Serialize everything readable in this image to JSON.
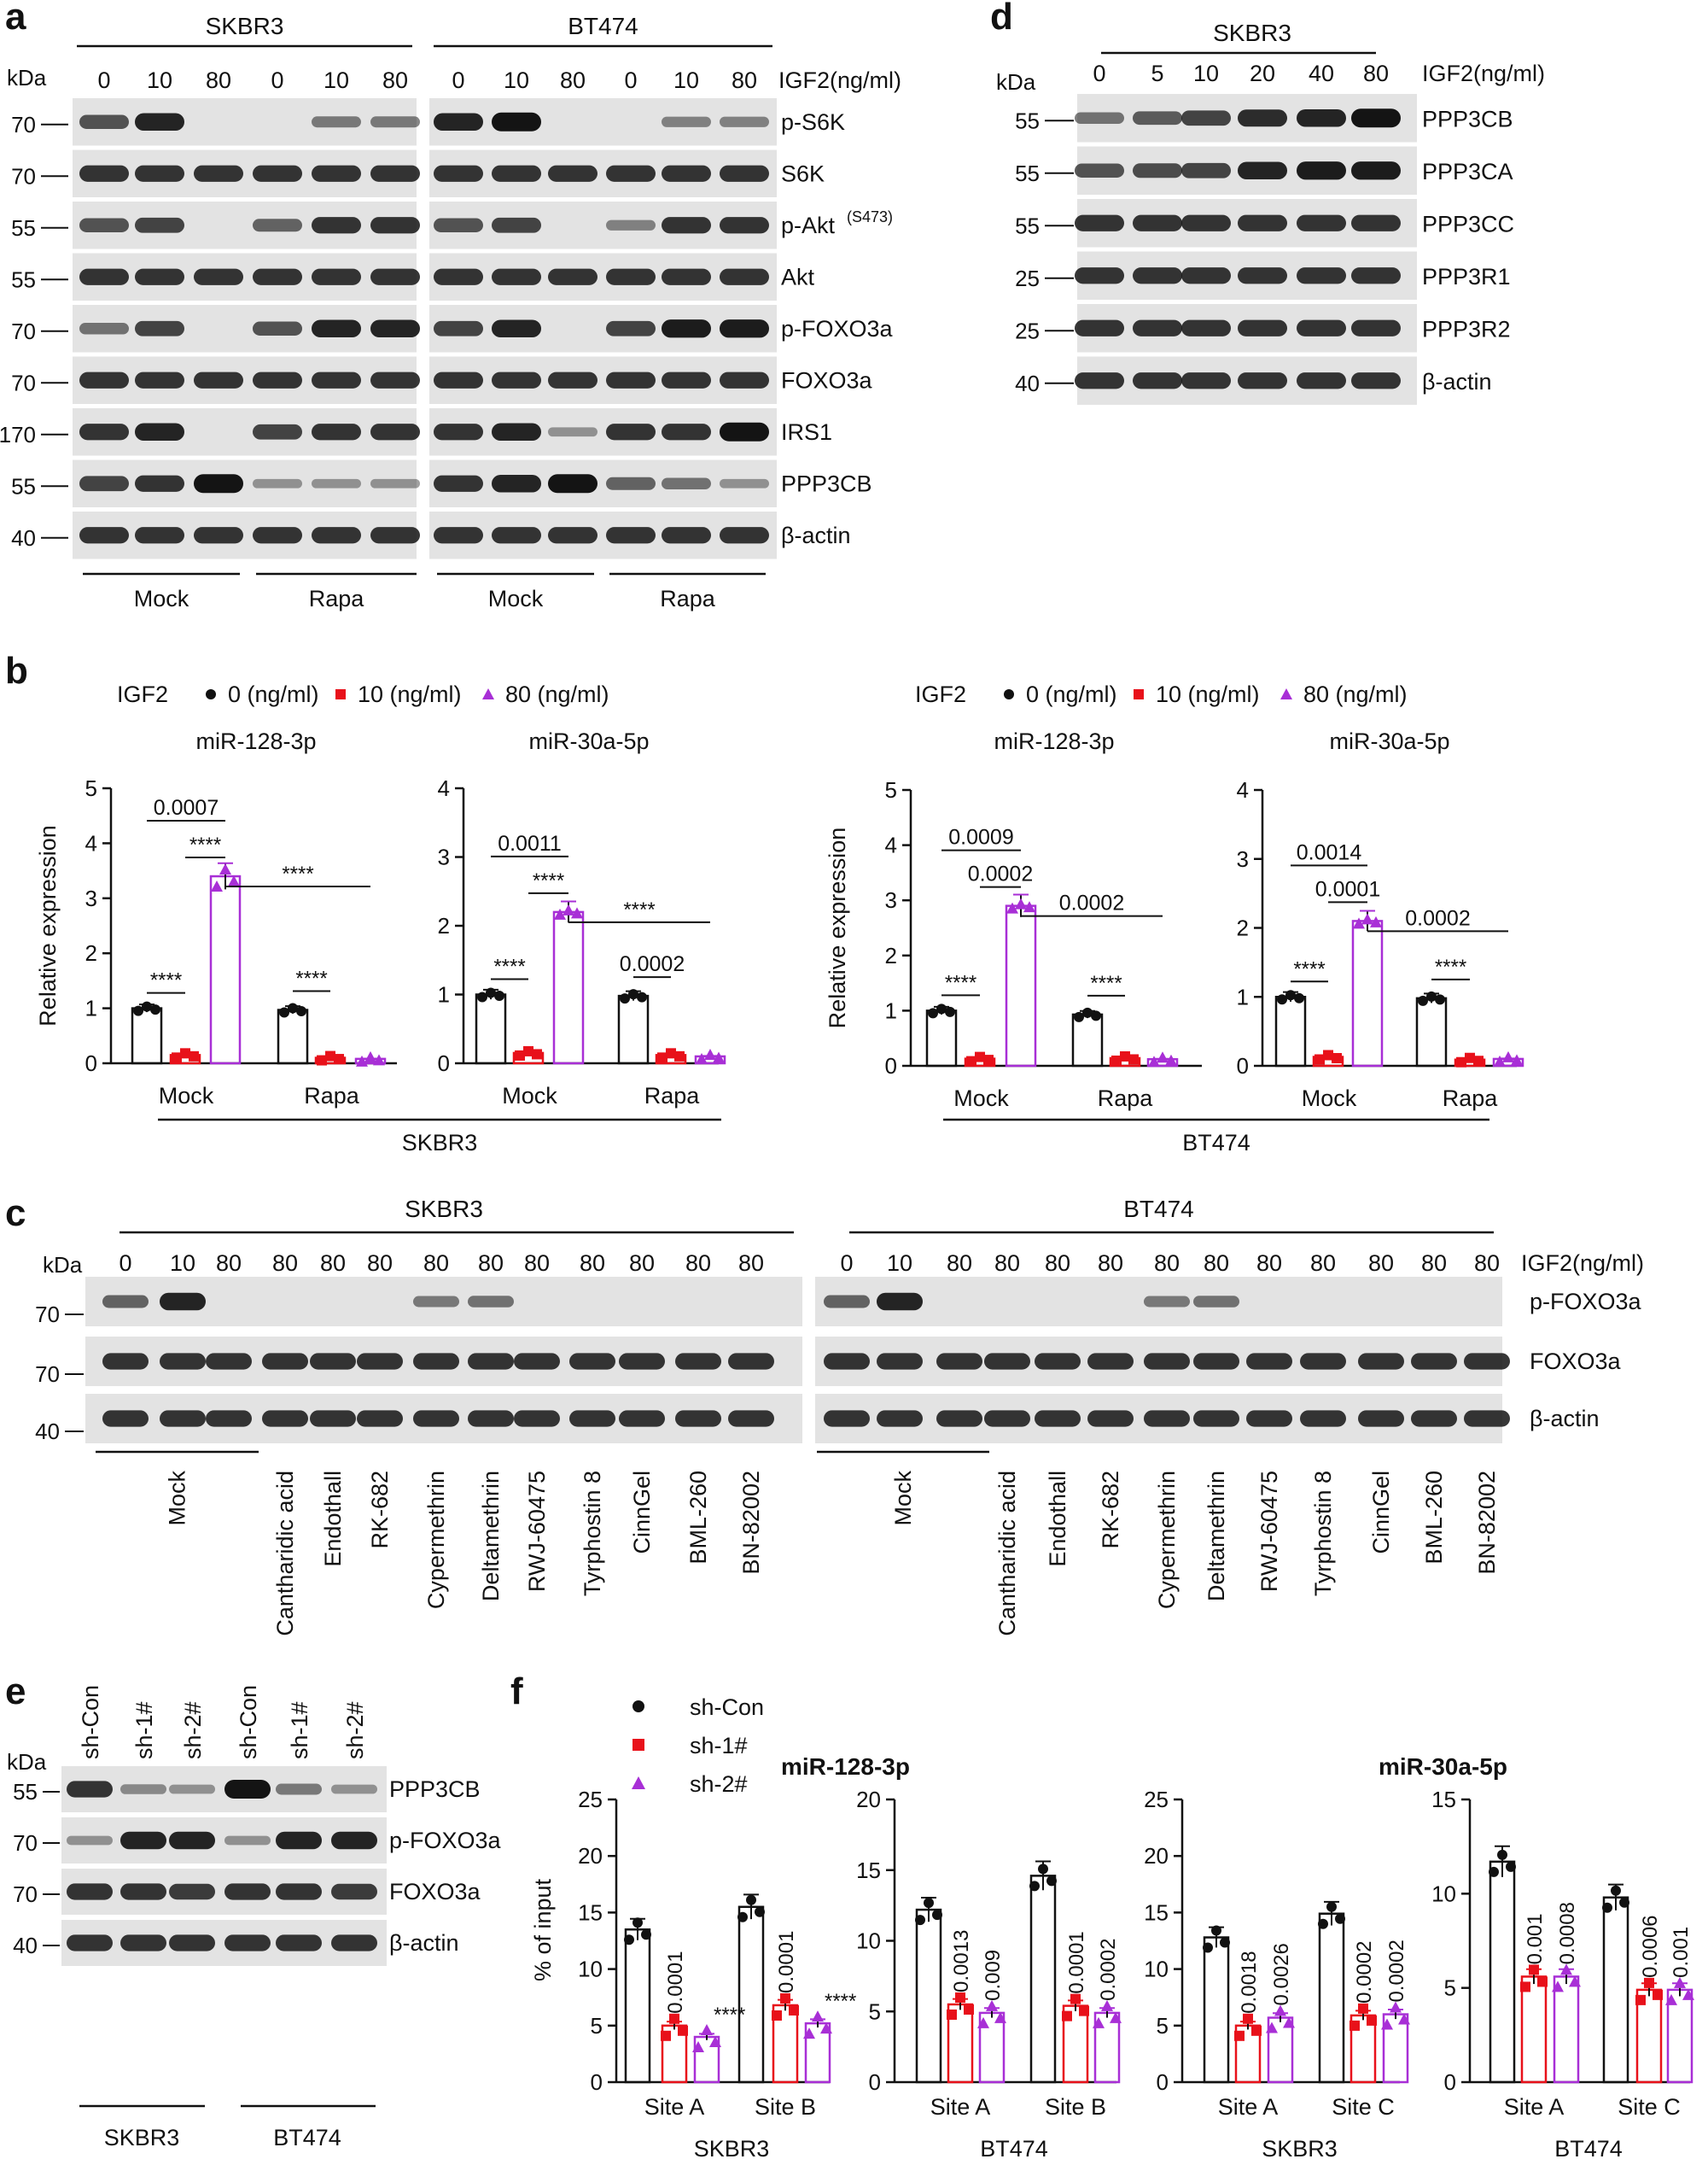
{
  "panels": {
    "a": {
      "letter": "a",
      "kda": "kDa",
      "groups": [
        {
          "cell": "SKBR3",
          "lanes": [
            "0",
            "10",
            "80",
            "0",
            "10",
            "80"
          ],
          "treatments": [
            "Mock",
            "Rapa"
          ]
        },
        {
          "cell": "BT474",
          "lanes": [
            "0",
            "10",
            "80",
            "0",
            "10",
            "80"
          ],
          "treatments": [
            "Mock",
            "Rapa"
          ]
        }
      ],
      "igf2_label": "IGF2(ng/ml)",
      "rows": [
        {
          "label": "p-S6K",
          "mw": "70",
          "levels": [
            0.6,
            0.9,
            0.0,
            0.0,
            0.35,
            0.35
          ],
          "levels2": [
            0.9,
            1.0,
            0.0,
            0.0,
            0.3,
            0.3
          ]
        },
        {
          "label": "S6K",
          "mw": "70",
          "levels": [
            0.8,
            0.8,
            0.8,
            0.8,
            0.8,
            0.8
          ],
          "levels2": [
            0.8,
            0.8,
            0.8,
            0.8,
            0.8,
            0.8
          ]
        },
        {
          "label": "p-Akt",
          "sup": "(S473)",
          "mw": "55",
          "levels": [
            0.6,
            0.7,
            0.0,
            0.5,
            0.8,
            0.8
          ],
          "levels2": [
            0.6,
            0.7,
            0.0,
            0.3,
            0.8,
            0.8
          ]
        },
        {
          "label": "Akt",
          "mw": "55",
          "levels": [
            0.8,
            0.8,
            0.8,
            0.8,
            0.8,
            0.8
          ],
          "levels2": [
            0.8,
            0.8,
            0.8,
            0.8,
            0.8,
            0.8
          ]
        },
        {
          "label": "p-FOXO3a",
          "mw": "70",
          "levels": [
            0.4,
            0.7,
            0.0,
            0.6,
            0.9,
            0.9
          ],
          "levels2": [
            0.7,
            0.9,
            0.0,
            0.7,
            0.95,
            0.95
          ]
        },
        {
          "label": "FOXO3a",
          "mw": "70",
          "levels": [
            0.8,
            0.8,
            0.8,
            0.8,
            0.8,
            0.8
          ],
          "levels2": [
            0.8,
            0.8,
            0.8,
            0.8,
            0.8,
            0.8
          ]
        },
        {
          "label": "IRS1",
          "mw": "170",
          "levels": [
            0.8,
            0.9,
            0.0,
            0.7,
            0.8,
            0.8
          ],
          "levels2": [
            0.8,
            0.9,
            0.2,
            0.8,
            0.8,
            1.0
          ]
        },
        {
          "label": "PPP3CB",
          "mw": "55",
          "levels": [
            0.7,
            0.8,
            1.0,
            0.2,
            0.2,
            0.2
          ],
          "levels2": [
            0.8,
            0.9,
            1.0,
            0.5,
            0.4,
            0.2
          ]
        },
        {
          "label": "β-actin",
          "mw": "40",
          "levels": [
            0.8,
            0.8,
            0.8,
            0.8,
            0.8,
            0.8
          ],
          "levels2": [
            0.8,
            0.8,
            0.8,
            0.8,
            0.8,
            0.8
          ]
        }
      ]
    },
    "b": {
      "letter": "b",
      "legend_title": "IGF2",
      "legend_items": [
        "0 (ng/ml)",
        "10 (ng/ml)",
        "80 (ng/ml)"
      ],
      "ylabel": "Relative expression",
      "sig": "****",
      "charts": [
        {
          "title": "miR-128-3p",
          "ymax": 5,
          "ticks": [
            "0",
            "1",
            "2",
            "3",
            "4",
            "5"
          ],
          "values": [
            1.0,
            0.15,
            3.4,
            0.97,
            0.1,
            0.08
          ],
          "annotations": [
            "0.0007",
            "****",
            "****",
            "****",
            "****"
          ]
        },
        {
          "title": "miR-30a-5p",
          "ymax": 4,
          "ticks": [
            "0",
            "1",
            "2",
            "3",
            "4"
          ],
          "values": [
            1.0,
            0.15,
            2.2,
            0.98,
            0.12,
            0.1
          ],
          "annotations": [
            "0.0011",
            "****",
            "****",
            "****",
            "0.0002"
          ]
        },
        {
          "title": "miR-128-3p",
          "ymax": 5,
          "ticks": [
            "0",
            "1",
            "2",
            "3",
            "4",
            "5"
          ],
          "values": [
            1.0,
            0.13,
            2.9,
            0.93,
            0.14,
            0.12
          ],
          "annotations": [
            "0.0009",
            "0.0002",
            "0.0002",
            "****",
            "****"
          ]
        },
        {
          "title": "miR-30a-5p",
          "ymax": 4,
          "ticks": [
            "0",
            "1",
            "2",
            "3",
            "4"
          ],
          "values": [
            1.0,
            0.13,
            2.1,
            0.98,
            0.09,
            0.1
          ],
          "annotations": [
            "0.0014",
            "0.0001",
            "0.0002",
            "****",
            "****"
          ]
        }
      ],
      "groups": [
        "Mock",
        "Rapa"
      ],
      "cells": [
        "SKBR3",
        "BT474"
      ]
    },
    "c": {
      "letter": "c",
      "kda": "kDa",
      "cells": [
        "SKBR3",
        "BT474"
      ],
      "lanes": [
        "0",
        "10",
        "80",
        "80",
        "80",
        "80",
        "80",
        "80",
        "80",
        "80",
        "80",
        "80",
        "80"
      ],
      "igf2_label": "IGF2(ng/ml)",
      "rows": [
        {
          "label": "p-FOXO3a",
          "mw": "70"
        },
        {
          "label": "FOXO3a",
          "mw": "70"
        },
        {
          "label": "β-actin",
          "mw": "40"
        }
      ],
      "pfoxo_levels": [
        0.5,
        0.9,
        0,
        0,
        0,
        0,
        0.35,
        0.4,
        0,
        0,
        0,
        0,
        0
      ],
      "treatments": [
        "Mock",
        "Cantharidic acid",
        "Endothall",
        "RK-682",
        "Cypermethrin",
        "Deltamethrin",
        "RWJ-60475",
        "Tyrphostin 8",
        "CinnGel",
        "BML-260",
        "BN-82002"
      ]
    },
    "d": {
      "letter": "d",
      "kda": "kDa",
      "cell": "SKBR3",
      "lanes": [
        "0",
        "5",
        "10",
        "20",
        "40",
        "80"
      ],
      "igf2_label": "IGF2(ng/ml)",
      "rows": [
        {
          "label": "PPP3CB",
          "mw": "55",
          "levels": [
            0.4,
            0.55,
            0.7,
            0.85,
            0.9,
            1.0
          ]
        },
        {
          "label": "PPP3CA",
          "mw": "55",
          "levels": [
            0.6,
            0.65,
            0.7,
            0.9,
            0.95,
            0.95
          ]
        },
        {
          "label": "PPP3CC",
          "mw": "55",
          "levels": [
            0.8,
            0.8,
            0.8,
            0.8,
            0.8,
            0.8
          ]
        },
        {
          "label": "PPP3R1",
          "mw": "25",
          "levels": [
            0.8,
            0.8,
            0.8,
            0.8,
            0.8,
            0.8
          ]
        },
        {
          "label": "PPP3R2",
          "mw": "25",
          "levels": [
            0.8,
            0.8,
            0.8,
            0.8,
            0.8,
            0.8
          ]
        },
        {
          "label": "β-actin",
          "mw": "40",
          "levels": [
            0.8,
            0.8,
            0.8,
            0.8,
            0.8,
            0.8
          ]
        }
      ]
    },
    "e": {
      "letter": "e",
      "kda": "kDa",
      "lanes": [
        "sh-Con",
        "sh-1#",
        "sh-2#",
        "sh-Con",
        "sh-1#",
        "sh-2#"
      ],
      "cells": [
        "SKBR3",
        "BT474"
      ],
      "rows": [
        {
          "label": "PPP3CB",
          "mw": "55",
          "levels": [
            0.8,
            0.25,
            0.2,
            1.0,
            0.35,
            0.2
          ]
        },
        {
          "label": "p-FOXO3a",
          "mw": "70",
          "levels": [
            0.2,
            0.9,
            0.9,
            0.2,
            0.9,
            0.9
          ]
        },
        {
          "label": "FOXO3a",
          "mw": "70",
          "levels": [
            0.8,
            0.8,
            0.75,
            0.8,
            0.8,
            0.75
          ]
        },
        {
          "label": "β-actin",
          "mw": "40",
          "levels": [
            0.8,
            0.8,
            0.8,
            0.8,
            0.8,
            0.8
          ]
        }
      ]
    },
    "f": {
      "letter": "f",
      "legend_items": [
        "sh-Con",
        "sh-1#",
        "sh-2#"
      ],
      "ylabel": "% of input",
      "mir1": "miR-128-3p",
      "mir2": "miR-30a-5p",
      "charts": [
        {
          "cell": "SKBR3",
          "ymax": 25,
          "ticks": [
            "0",
            "5",
            "10",
            "15",
            "20",
            "25"
          ],
          "sites": [
            "Site A",
            "Site B"
          ],
          "values": [
            13.5,
            5.0,
            4.0,
            15.5,
            6.8,
            5.2
          ],
          "pvals": [
            "0.0001",
            "****",
            "0.0001",
            "****"
          ]
        },
        {
          "cell": "BT474",
          "ymax": 20,
          "ticks": [
            "0",
            "5",
            "10",
            "15",
            "20"
          ],
          "sites": [
            "Site A",
            "Site B"
          ],
          "values": [
            12.2,
            5.5,
            4.9,
            14.6,
            5.4,
            4.9
          ],
          "pvals": [
            "0.0013",
            "0.009",
            "0.0001",
            "0.0002"
          ]
        },
        {
          "cell": "SKBR3",
          "ymax": 25,
          "ticks": [
            "0",
            "5",
            "10",
            "15",
            "20",
            "25"
          ],
          "sites": [
            "Site A",
            "Site C"
          ],
          "values": [
            12.8,
            5.0,
            5.7,
            14.9,
            5.9,
            6.0
          ],
          "pvals": [
            "0.0018",
            "0.0026",
            "0.0002",
            "0.0002"
          ]
        },
        {
          "cell": "BT474",
          "ymax": 15,
          "ticks": [
            "0",
            "5",
            "10",
            "15"
          ],
          "sites": [
            "Site A",
            "Site C"
          ],
          "values": [
            11.7,
            5.6,
            5.6,
            9.8,
            4.9,
            4.9
          ],
          "pvals": [
            "0.001",
            "0.0008",
            "0.0006",
            "0.001"
          ]
        }
      ]
    }
  },
  "colors": {
    "black": "#111111",
    "red": "#e8111a",
    "purple": "#a82fd6",
    "gel_bg": "#e3e3e3",
    "band": "#141414"
  }
}
